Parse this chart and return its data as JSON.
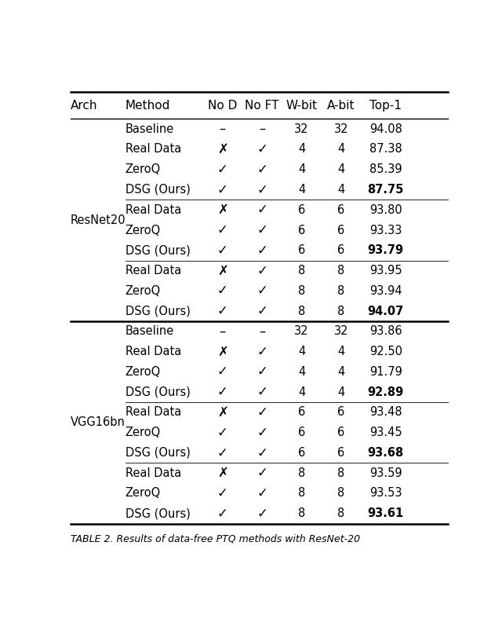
{
  "title": "",
  "caption": "TABLE 2. Results of data-free PTQ methods with ResNet-20",
  "columns": [
    "Arch",
    "Method",
    "No D",
    "No FT",
    "W-bit",
    "A-bit",
    "Top-1"
  ],
  "rows": [
    {
      "arch": "ResNet20",
      "method": "Baseline",
      "nod": "–",
      "noft": "–",
      "wbit": "32",
      "abit": "32",
      "top1": "94.08",
      "bold": false,
      "group_start": true
    },
    {
      "arch": "",
      "method": "Real Data",
      "nod": "✗",
      "noft": "✓",
      "wbit": "4",
      "abit": "4",
      "top1": "87.38",
      "bold": false,
      "group_start": false
    },
    {
      "arch": "",
      "method": "ZeroQ",
      "nod": "✓",
      "noft": "✓",
      "wbit": "4",
      "abit": "4",
      "top1": "85.39",
      "bold": false,
      "group_start": false
    },
    {
      "arch": "",
      "method": "DSG (Ours)",
      "nod": "✓",
      "noft": "✓",
      "wbit": "4",
      "abit": "4",
      "top1": "87.75",
      "bold": true,
      "group_start": false
    },
    {
      "arch": "",
      "method": "Real Data",
      "nod": "✗",
      "noft": "✓",
      "wbit": "6",
      "abit": "6",
      "top1": "93.80",
      "bold": false,
      "group_start": true
    },
    {
      "arch": "",
      "method": "ZeroQ",
      "nod": "✓",
      "noft": "✓",
      "wbit": "6",
      "abit": "6",
      "top1": "93.33",
      "bold": false,
      "group_start": false
    },
    {
      "arch": "",
      "method": "DSG (Ours)",
      "nod": "✓",
      "noft": "✓",
      "wbit": "6",
      "abit": "6",
      "top1": "93.79",
      "bold": true,
      "group_start": false
    },
    {
      "arch": "",
      "method": "Real Data",
      "nod": "✗",
      "noft": "✓",
      "wbit": "8",
      "abit": "8",
      "top1": "93.95",
      "bold": false,
      "group_start": true
    },
    {
      "arch": "",
      "method": "ZeroQ",
      "nod": "✓",
      "noft": "✓",
      "wbit": "8",
      "abit": "8",
      "top1": "93.94",
      "bold": false,
      "group_start": false
    },
    {
      "arch": "",
      "method": "DSG (Ours)",
      "nod": "✓",
      "noft": "✓",
      "wbit": "8",
      "abit": "8",
      "top1": "94.07",
      "bold": true,
      "group_start": false
    },
    {
      "arch": "VGG16bn",
      "method": "Baseline",
      "nod": "–",
      "noft": "–",
      "wbit": "32",
      "abit": "32",
      "top1": "93.86",
      "bold": false,
      "group_start": true
    },
    {
      "arch": "",
      "method": "Real Data",
      "nod": "✗",
      "noft": "✓",
      "wbit": "4",
      "abit": "4",
      "top1": "92.50",
      "bold": false,
      "group_start": false
    },
    {
      "arch": "",
      "method": "ZeroQ",
      "nod": "✓",
      "noft": "✓",
      "wbit": "4",
      "abit": "4",
      "top1": "91.79",
      "bold": false,
      "group_start": false
    },
    {
      "arch": "",
      "method": "DSG (Ours)",
      "nod": "✓",
      "noft": "✓",
      "wbit": "4",
      "abit": "4",
      "top1": "92.89",
      "bold": true,
      "group_start": false
    },
    {
      "arch": "",
      "method": "Real Data",
      "nod": "✗",
      "noft": "✓",
      "wbit": "6",
      "abit": "6",
      "top1": "93.48",
      "bold": false,
      "group_start": true
    },
    {
      "arch": "",
      "method": "ZeroQ",
      "nod": "✓",
      "noft": "✓",
      "wbit": "6",
      "abit": "6",
      "top1": "93.45",
      "bold": false,
      "group_start": false
    },
    {
      "arch": "",
      "method": "DSG (Ours)",
      "nod": "✓",
      "noft": "✓",
      "wbit": "6",
      "abit": "6",
      "top1": "93.68",
      "bold": true,
      "group_start": false
    },
    {
      "arch": "",
      "method": "Real Data",
      "nod": "✗",
      "noft": "✓",
      "wbit": "8",
      "abit": "8",
      "top1": "93.59",
      "bold": false,
      "group_start": true
    },
    {
      "arch": "",
      "method": "ZeroQ",
      "nod": "✓",
      "noft": "✓",
      "wbit": "8",
      "abit": "8",
      "top1": "93.53",
      "bold": false,
      "group_start": false
    },
    {
      "arch": "",
      "method": "DSG (Ours)",
      "nod": "✓",
      "noft": "✓",
      "wbit": "8",
      "abit": "8",
      "top1": "93.61",
      "bold": true,
      "group_start": false
    }
  ],
  "arch_ranges": {
    "ResNet20": [
      0,
      9
    ],
    "VGG16bn": [
      10,
      19
    ]
  },
  "arch_separator_before_row": 10,
  "group_sep_before_rows": [
    4,
    7,
    14,
    17
  ],
  "background_color": "#ffffff",
  "text_color": "#000000",
  "header_fontsize": 11,
  "body_fontsize": 10.5,
  "caption_fontsize": 9
}
